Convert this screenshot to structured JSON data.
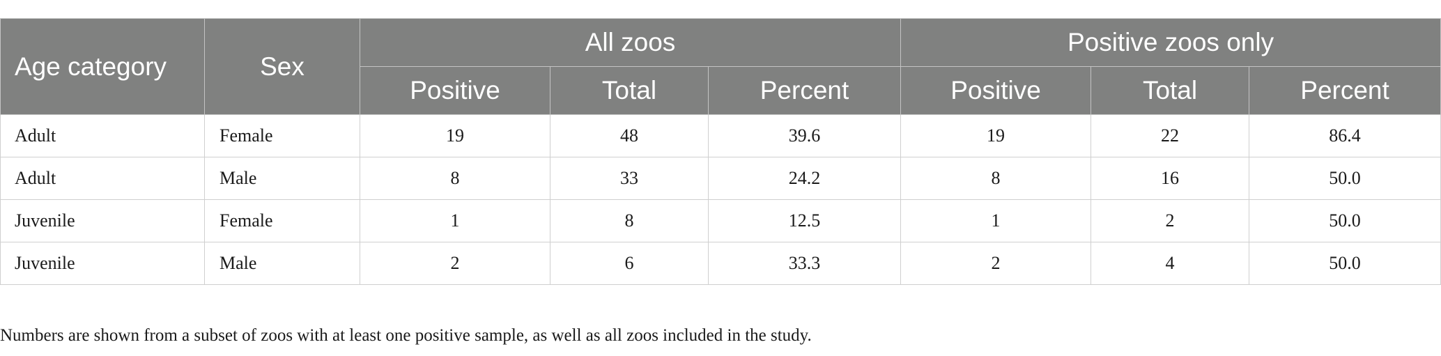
{
  "table": {
    "headers": {
      "age_category": "Age category",
      "sex": "Sex",
      "group_all": "All zoos",
      "group_positive": "Positive zoos only",
      "sub": [
        "Positive",
        "Total",
        "Percent",
        "Positive",
        "Total",
        "Percent"
      ]
    },
    "rows": [
      {
        "age": "Adult",
        "sex": "Female",
        "cells": [
          "19",
          "48",
          "39.6",
          "19",
          "22",
          "86.4"
        ]
      },
      {
        "age": "Adult",
        "sex": "Male",
        "cells": [
          "8",
          "33",
          "24.2",
          "8",
          "16",
          "50.0"
        ]
      },
      {
        "age": "Juvenile",
        "sex": "Female",
        "cells": [
          "1",
          "8",
          "12.5",
          "1",
          "2",
          "50.0"
        ]
      },
      {
        "age": "Juvenile",
        "sex": "Male",
        "cells": [
          "2",
          "6",
          "33.3",
          "2",
          "4",
          "50.0"
        ]
      }
    ]
  },
  "footnote": "Numbers are shown from a subset of zoos with at least one positive sample, as well as all zoos included in the study."
}
